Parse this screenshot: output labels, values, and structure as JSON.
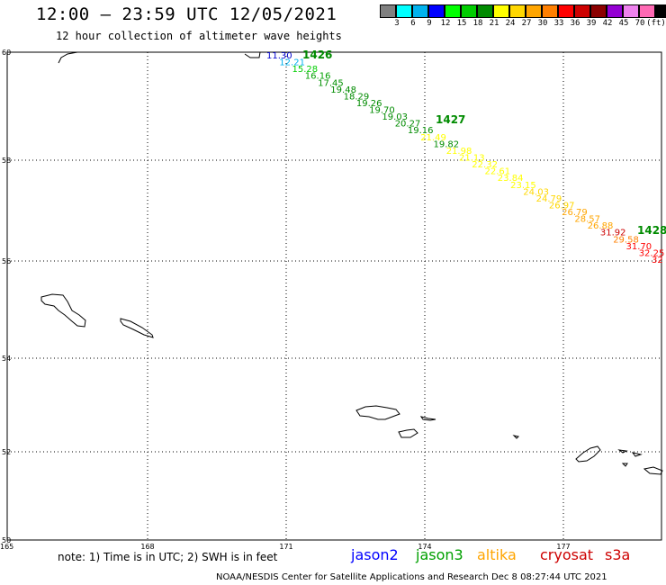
{
  "header": {
    "title": "12:00 – 23:59 UTC 12/05/2021",
    "subtitle": "12 hour collection of altimeter wave heights"
  },
  "colorbar": {
    "colors": [
      "#808080",
      "#00ffff",
      "#00b2ee",
      "#0000ff",
      "#00ff00",
      "#00cd00",
      "#008b00",
      "#ffff00",
      "#ffd700",
      "#ffa500",
      "#ff7f00",
      "#ff0000",
      "#cd0000",
      "#8b0000",
      "#9400d3",
      "#ee82ee",
      "#ff69b4",
      "#000000"
    ],
    "labels": [
      "3",
      "6",
      "9",
      "12",
      "15",
      "18",
      "21",
      "24",
      "27",
      "30",
      "33",
      "36",
      "39",
      "42",
      "45",
      "70",
      "(ft)"
    ]
  },
  "axes": {
    "lat_labels": [
      "60",
      "58",
      "56",
      "54",
      "52",
      "50"
    ],
    "lon_labels": [
      "165",
      "168",
      "171",
      "174",
      "177"
    ]
  },
  "track": {
    "passes": [
      {
        "label": "1426",
        "color": "#008b00"
      },
      {
        "label": "1427",
        "color": "#008b00"
      },
      {
        "label": "1428",
        "color": "#008b00"
      }
    ],
    "values": [
      {
        "v": "11.30",
        "c": "#0000cd"
      },
      {
        "v": "12.21",
        "c": "#00b2ee"
      },
      {
        "v": "15.28",
        "c": "#00cd00"
      },
      {
        "v": "16.16",
        "c": "#00a000"
      },
      {
        "v": "17.45",
        "c": "#009000"
      },
      {
        "v": "19.48",
        "c": "#008b00"
      },
      {
        "v": "18.29",
        "c": "#008b00"
      },
      {
        "v": "19.26",
        "c": "#008b00"
      },
      {
        "v": "19.70",
        "c": "#008b00"
      },
      {
        "v": "19.03",
        "c": "#008b00"
      },
      {
        "v": "20.27",
        "c": "#008b00"
      },
      {
        "v": "19.16",
        "c": "#008b00"
      },
      {
        "v": "21.49",
        "c": "#ffff00"
      },
      {
        "v": "19.82",
        "c": "#008b00"
      },
      {
        "v": "21.98",
        "c": "#ffff00"
      },
      {
        "v": "21.13",
        "c": "#ffff00"
      },
      {
        "v": "22.32",
        "c": "#ffff00"
      },
      {
        "v": "22.61",
        "c": "#ffff00"
      },
      {
        "v": "23.84",
        "c": "#ffff00"
      },
      {
        "v": "23.15",
        "c": "#ffff00"
      },
      {
        "v": "24.03",
        "c": "#ffd700"
      },
      {
        "v": "24.79",
        "c": "#ffd700"
      },
      {
        "v": "26.97",
        "c": "#ffd700"
      },
      {
        "v": "26.79",
        "c": "#ffa500"
      },
      {
        "v": "28.57",
        "c": "#ffa500"
      },
      {
        "v": "26.88",
        "c": "#ffa500"
      },
      {
        "v": "31.92",
        "c": "#cd0000"
      },
      {
        "v": "29.58",
        "c": "#ff7f00"
      },
      {
        "v": "31.70",
        "c": "#ff0000"
      },
      {
        "v": "32.25",
        "c": "#ff0000"
      },
      {
        "v": "32",
        "c": "#ff0000"
      }
    ]
  },
  "footer": {
    "note": "note: 1) Time is in UTC; 2) SWH is in feet",
    "satellites": [
      {
        "name": "jason2",
        "color": "#0000ff"
      },
      {
        "name": "jason3",
        "color": "#00a000"
      },
      {
        "name": "altika",
        "color": "#ffa500"
      },
      {
        "name": "cryosat",
        "color": "#cd0000"
      },
      {
        "name": "s3a",
        "color": "#cd0000"
      }
    ],
    "credit": "NOAA/NESDIS Center for Satellite Applications and Research    Dec  8 08:27:44 UTC 2021"
  }
}
